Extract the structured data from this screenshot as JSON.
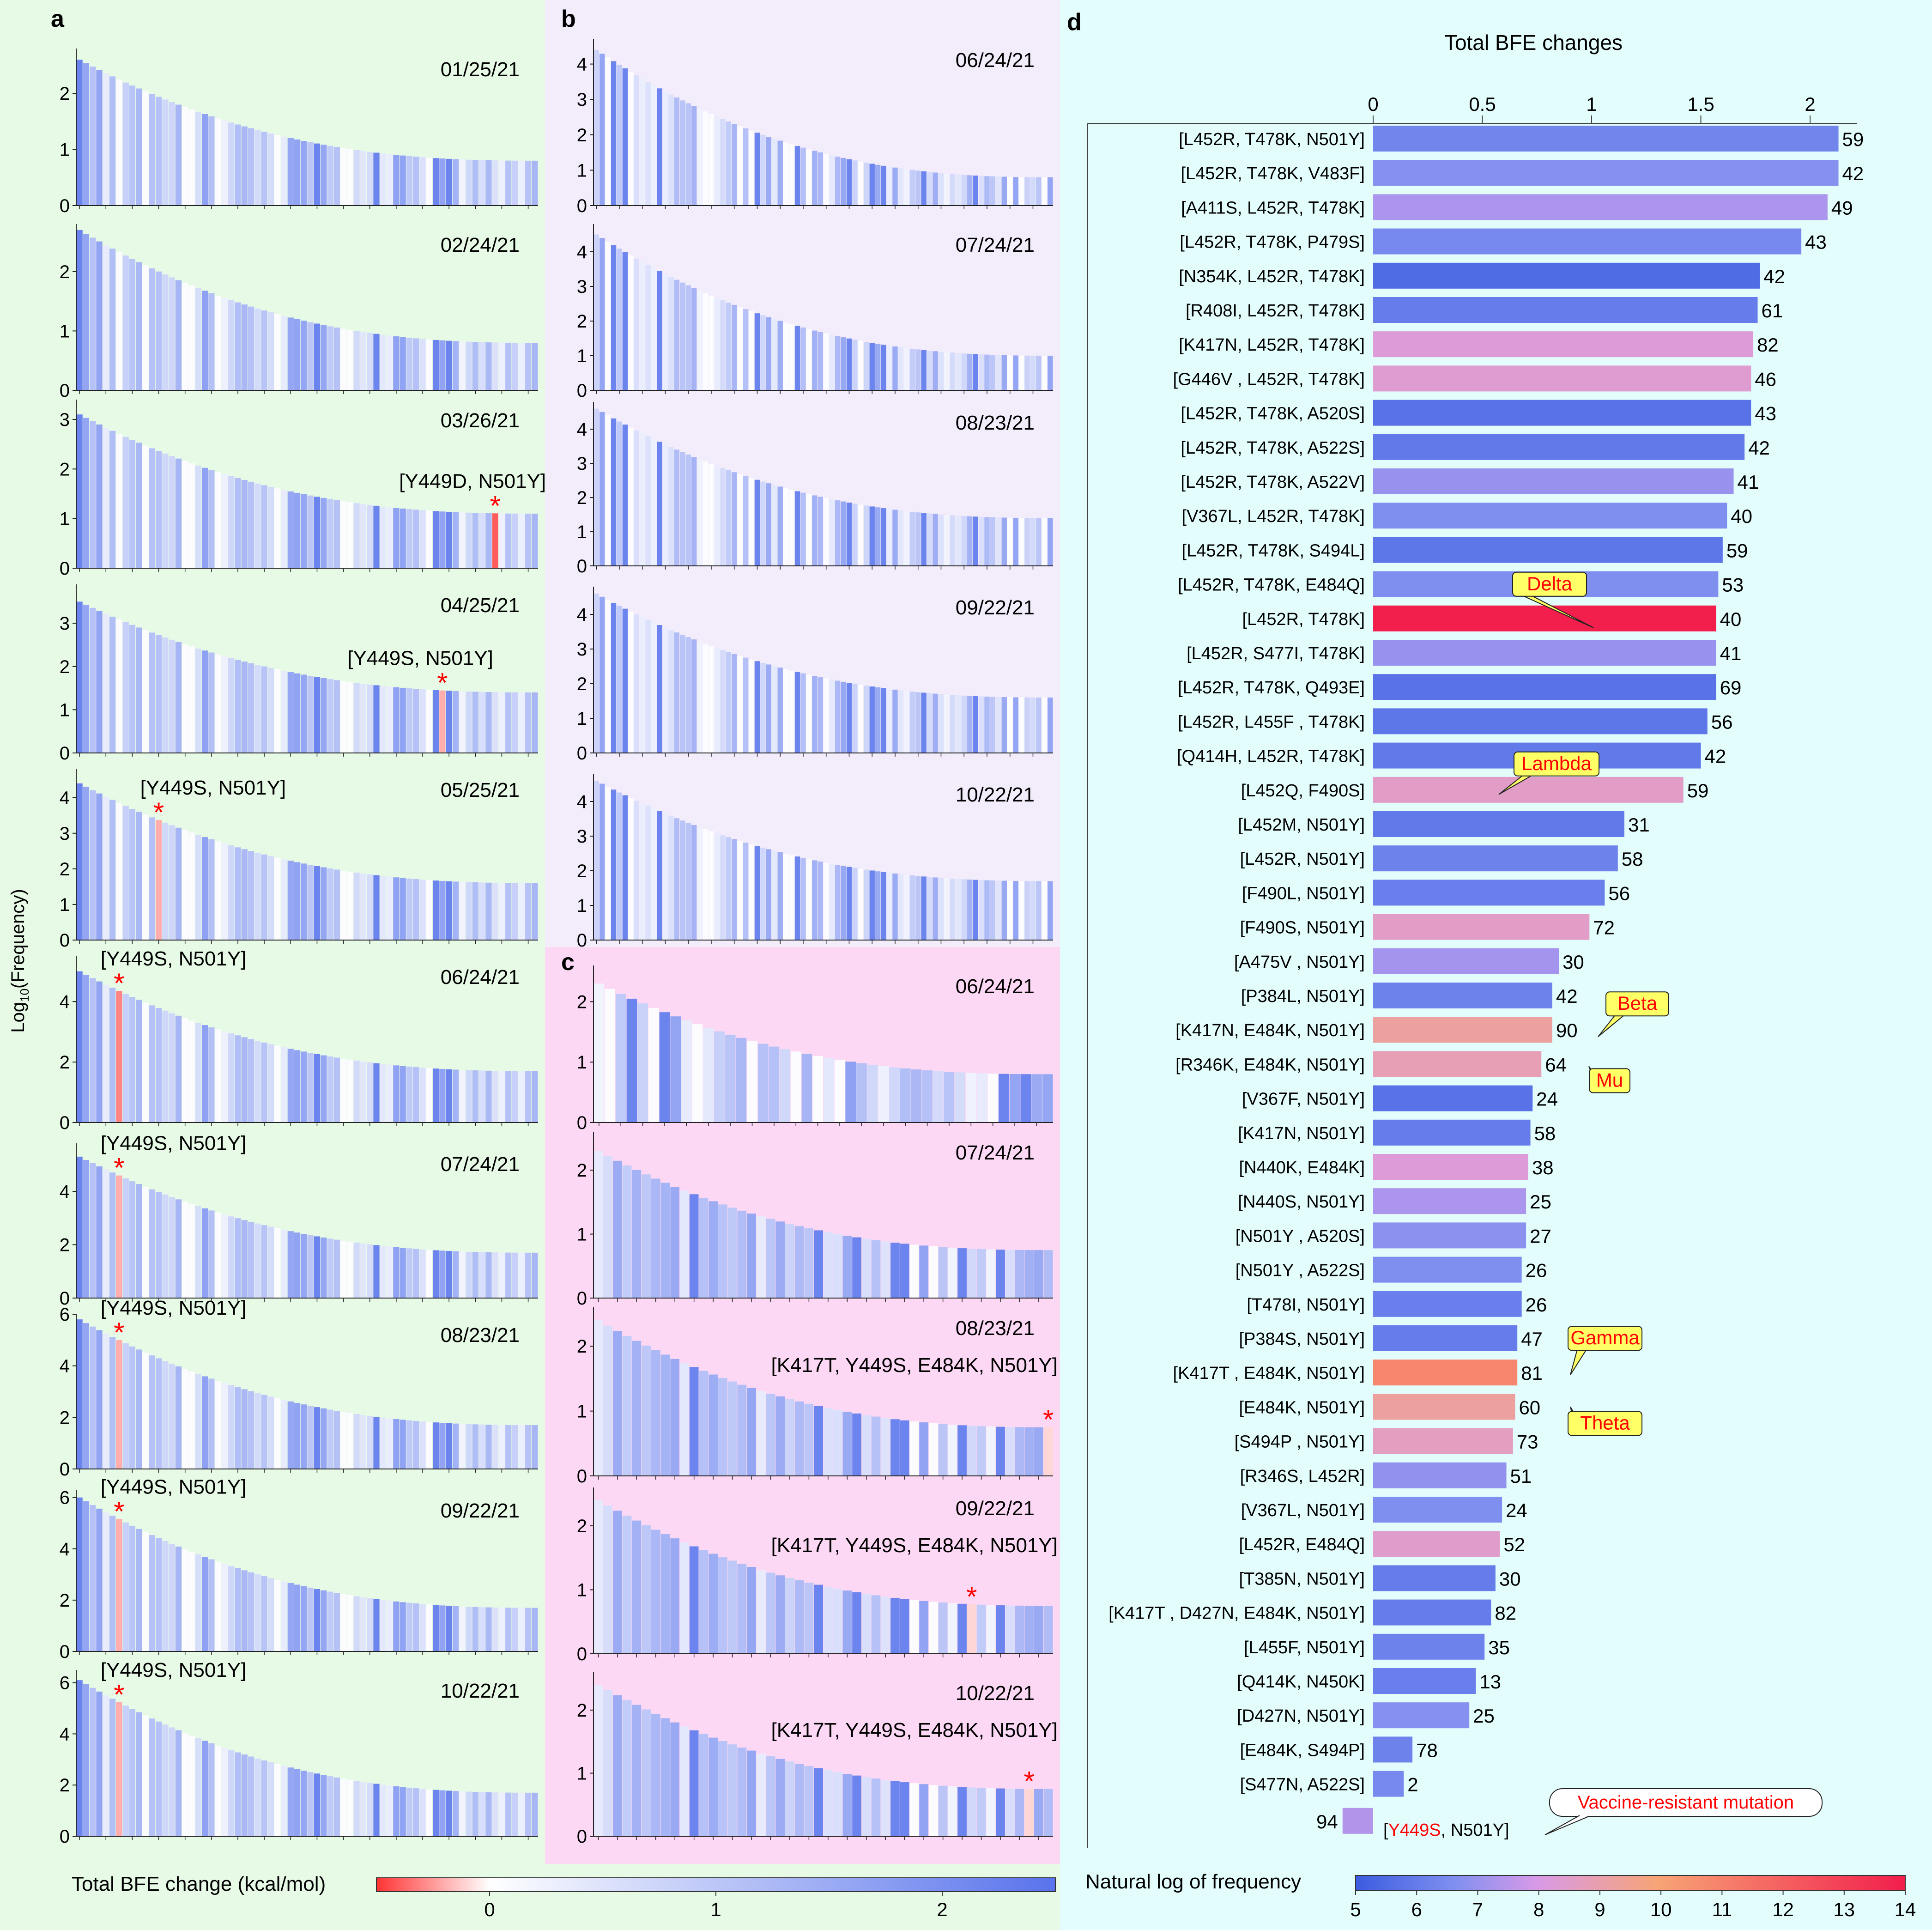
{
  "panels": {
    "a_label": "a",
    "b_label": "b",
    "c_label": "c",
    "d_label": "d",
    "y_axis_label_prefix": "Log",
    "y_axis_label_sub": "10",
    "y_axis_label_suffix": "(Frequency)"
  },
  "colors": {
    "panel_a_bg": "#e6fae6",
    "panel_b_bg": "#f2ecfb",
    "panel_c_bg": "#fcd8f4",
    "panel_d_bg": "#e3fdfd",
    "bfe_negative": "#ff3333",
    "bfe_zero": "#ffffff",
    "bfe_positive": "#5873ec",
    "freq_low": "#3b5ce0",
    "freq_mid": "#d89ae8",
    "freq_orange": "#f7a476",
    "freq_high": "#f21e4c",
    "annotation_fill": "#ffff66",
    "annotation_text": "#ff0000",
    "star": "#ff0000"
  },
  "bfe_colorbar": {
    "label": "Total BFE change (kcal/mol)",
    "ticks": [
      "0",
      "1",
      "2"
    ],
    "tick_values": [
      0,
      1,
      2
    ],
    "range": [
      -0.5,
      2.5
    ]
  },
  "freq_colorbar": {
    "label": "Natural log of frequency",
    "ticks": [
      "5",
      "6",
      "7",
      "8",
      "9",
      "10",
      "11",
      "12",
      "13",
      "14"
    ],
    "tick_values": [
      5,
      6,
      7,
      8,
      9,
      10,
      11,
      12,
      13,
      14
    ],
    "range": [
      5,
      14
    ]
  },
  "chart_data": [
    {
      "type": "bar",
      "panel": "a",
      "x_label": "",
      "y_label": "Log10(Frequency)",
      "subplots": [
        {
          "date": "01/25/21",
          "y_ticks": [
            "0",
            "1",
            "2"
          ],
          "ylim": [
            0,
            2.8
          ],
          "y_start": 2.6,
          "y_end": 0.8,
          "n_bars": 70,
          "highlight_label": "",
          "highlight_index": -1
        },
        {
          "date": "02/24/21",
          "y_ticks": [
            "0",
            "1",
            "2"
          ],
          "ylim": [
            0,
            2.8
          ],
          "y_start": 2.7,
          "y_end": 0.8,
          "n_bars": 70,
          "highlight_label": "",
          "highlight_index": -1
        },
        {
          "date": "03/26/21",
          "y_ticks": [
            "0",
            "1",
            "2",
            "3"
          ],
          "ylim": [
            0,
            3.4
          ],
          "y_start": 3.1,
          "y_end": 1.1,
          "n_bars": 70,
          "highlight_label": "[Y449D, N501Y]",
          "highlight_index": 63,
          "highlight_bfe": -0.4
        },
        {
          "date": "04/25/21",
          "y_ticks": [
            "0",
            "1",
            "2",
            "3"
          ],
          "ylim": [
            0,
            3.9
          ],
          "y_start": 3.5,
          "y_end": 1.4,
          "n_bars": 70,
          "highlight_label": "[Y449S, N501Y]",
          "highlight_index": 55,
          "highlight_bfe": -0.2
        },
        {
          "date": "05/25/21",
          "y_ticks": [
            "0",
            "1",
            "2",
            "3",
            "4"
          ],
          "ylim": [
            0,
            4.8
          ],
          "y_start": 4.4,
          "y_end": 1.6,
          "n_bars": 70,
          "highlight_label": "[Y449S, N501Y]",
          "highlight_index": 12,
          "highlight_bfe": -0.2
        },
        {
          "date": "06/24/21",
          "y_ticks": [
            "0",
            "2",
            "4"
          ],
          "ylim": [
            0,
            5.5
          ],
          "y_start": 5.0,
          "y_end": 1.7,
          "n_bars": 70,
          "highlight_label": "[Y449S, N501Y]",
          "highlight_index": 6,
          "highlight_bfe": -0.3
        },
        {
          "date": "07/24/21",
          "y_ticks": [
            "0",
            "2",
            "4"
          ],
          "ylim": [
            0,
            5.8
          ],
          "y_start": 5.3,
          "y_end": 1.7,
          "n_bars": 70,
          "highlight_label": "[Y449S, N501Y]",
          "highlight_index": 6,
          "highlight_bfe": -0.2
        },
        {
          "date": "08/23/21",
          "y_ticks": [
            "0",
            "2",
            "4",
            "6"
          ],
          "ylim": [
            0,
            6.0
          ],
          "y_start": 5.8,
          "y_end": 1.7,
          "n_bars": 70,
          "highlight_label": "[Y449S, N501Y]",
          "highlight_index": 6,
          "highlight_bfe": -0.2
        },
        {
          "date": "09/22/21",
          "y_ticks": [
            "0",
            "2",
            "4",
            "6"
          ],
          "ylim": [
            0,
            6.3
          ],
          "y_start": 6.0,
          "y_end": 1.7,
          "n_bars": 70,
          "highlight_label": "[Y449S, N501Y]",
          "highlight_index": 6,
          "highlight_bfe": -0.2
        },
        {
          "date": "10/22/21",
          "y_ticks": [
            "0",
            "2",
            "4",
            "6"
          ],
          "ylim": [
            0,
            6.5
          ],
          "y_start": 6.1,
          "y_end": 1.7,
          "n_bars": 70,
          "highlight_label": "[Y449S, N501Y]",
          "highlight_index": 6,
          "highlight_bfe": -0.2
        }
      ]
    },
    {
      "type": "bar",
      "panel": "b",
      "subplots": [
        {
          "date": "06/24/21",
          "y_ticks": [
            "0",
            "1",
            "2",
            "3",
            "4"
          ],
          "ylim": [
            0,
            4.7
          ],
          "y_start": 4.4,
          "y_end": 0.8,
          "n_bars": 80
        },
        {
          "date": "07/24/21",
          "y_ticks": [
            "0",
            "1",
            "2",
            "3",
            "4"
          ],
          "ylim": [
            0,
            4.8
          ],
          "y_start": 4.5,
          "y_end": 1.0,
          "n_bars": 80
        },
        {
          "date": "08/23/21",
          "y_ticks": [
            "0",
            "1",
            "2",
            "3",
            "4"
          ],
          "ylim": [
            0,
            4.8
          ],
          "y_start": 4.6,
          "y_end": 1.4,
          "n_bars": 80
        },
        {
          "date": "09/22/21",
          "y_ticks": [
            "0",
            "1",
            "2",
            "3",
            "4"
          ],
          "ylim": [
            0,
            4.8
          ],
          "y_start": 4.6,
          "y_end": 1.6,
          "n_bars": 80
        },
        {
          "date": "10/22/21",
          "y_ticks": [
            "0",
            "1",
            "2",
            "3",
            "4"
          ],
          "ylim": [
            0,
            4.8
          ],
          "y_start": 4.6,
          "y_end": 1.7,
          "n_bars": 80
        }
      ]
    },
    {
      "type": "bar",
      "panel": "c",
      "subplots": [
        {
          "date": "06/24/21",
          "y_ticks": [
            "0",
            "1",
            "2"
          ],
          "ylim": [
            0,
            2.6
          ],
          "y_start": 2.3,
          "y_end": 0.8,
          "n_bars": 42,
          "highlight_label": "",
          "highlight_index": -1
        },
        {
          "date": "07/24/21",
          "y_ticks": [
            "0",
            "1",
            "2"
          ],
          "ylim": [
            0,
            2.6
          ],
          "y_start": 2.3,
          "y_end": 0.75,
          "n_bars": 48,
          "highlight_label": "",
          "highlight_index": -1
        },
        {
          "date": "08/23/21",
          "y_ticks": [
            "0",
            "1",
            "2"
          ],
          "ylim": [
            0,
            2.6
          ],
          "y_start": 2.4,
          "y_end": 0.75,
          "n_bars": 48,
          "highlight_label": "[K417T, Y449S, E484K, N501Y]",
          "highlight_index": 47,
          "highlight_bfe": -0.1
        },
        {
          "date": "09/22/21",
          "y_ticks": [
            "0",
            "1",
            "2"
          ],
          "ylim": [
            0,
            2.6
          ],
          "y_start": 2.4,
          "y_end": 0.75,
          "n_bars": 48,
          "highlight_label": "[K417T, Y449S, E484K, N501Y]",
          "highlight_index": 39,
          "highlight_bfe": -0.1
        },
        {
          "date": "10/22/21",
          "y_ticks": [
            "0",
            "1",
            "2"
          ],
          "ylim": [
            0,
            2.6
          ],
          "y_start": 2.4,
          "y_end": 0.75,
          "n_bars": 48,
          "highlight_label": "[K417T, Y449S, E484K, N501Y]",
          "highlight_index": 45,
          "highlight_bfe": -0.1
        }
      ]
    },
    {
      "type": "bar",
      "panel": "d",
      "orientation": "horizontal",
      "title": "Total BFE changes",
      "x_ticks": [
        "0",
        "0.5",
        "1",
        "1.5",
        "2"
      ],
      "xlim": [
        0,
        2.2
      ],
      "categories": [
        "[L452R, T478K, N501Y]",
        "[L452R, T478K, V483F]",
        "[A411S, L452R, T478K]",
        "[L452R, T478K, P479S]",
        "[N354K, L452R, T478K]",
        "[R408I, L452R, T478K]",
        "[K417N, L452R, T478K]",
        "[G446V , L452R, T478K]",
        "[L452R, T478K, A520S]",
        "[L452R, T478K, A522S]",
        "[L452R, T478K, A522V]",
        "[V367L, L452R, T478K]",
        "[L452R, T478K, S494L]",
        "[L452R, T478K, E484Q]",
        "[L452R, T478K]",
        "[L452R, S477I, T478K]",
        "[L452R, T478K, Q493E]",
        "[L452R, L455F , T478K]",
        "[Q414H, L452R, T478K]",
        "[L452Q, F490S]",
        "[L452M, N501Y]",
        "[L452R, N501Y]",
        "[F490L, N501Y]",
        "[F490S, N501Y]",
        "[A475V , N501Y]",
        "[P384L, N501Y]",
        "[K417N, E484K, N501Y]",
        "[R346K, E484K, N501Y]",
        "[V367F, N501Y]",
        "[K417N, N501Y]",
        "[N440K, E484K]",
        "[N440S, N501Y]",
        "[N501Y , A520S]",
        "[N501Y , A522S]",
        "[T478I, N501Y]",
        "[P384S, N501Y]",
        "[K417T , E484K, N501Y]",
        "[E484K, N501Y]",
        "[S494P , N501Y]",
        "[R346S, L452R]",
        "[V367L, N501Y]",
        "[L452R, E484Q]",
        "[T385N, N501Y]",
        "[K417T , D427N, E484K, N501Y]",
        "[L455F, N501Y]",
        "[Q414K, N450K]",
        "[D427N, N501Y]",
        "[E484K, S494P]",
        "[S477N, A522S]"
      ],
      "values": [
        2.13,
        2.13,
        2.08,
        1.96,
        1.77,
        1.76,
        1.74,
        1.73,
        1.73,
        1.7,
        1.65,
        1.62,
        1.6,
        1.58,
        1.57,
        1.57,
        1.57,
        1.53,
        1.5,
        1.42,
        1.15,
        1.12,
        1.06,
        0.99,
        0.85,
        0.82,
        0.82,
        0.77,
        0.73,
        0.72,
        0.71,
        0.7,
        0.7,
        0.68,
        0.68,
        0.66,
        0.66,
        0.65,
        0.64,
        0.61,
        0.59,
        0.58,
        0.56,
        0.54,
        0.51,
        0.47,
        0.44,
        0.18,
        0.14
      ],
      "counts": [
        "59",
        "42",
        "49",
        "43",
        "42",
        "61",
        "82",
        "46",
        "43",
        "42",
        "41",
        "40",
        "59",
        "53",
        "40",
        "41",
        "69",
        "56",
        "42",
        "59",
        "31",
        "58",
        "56",
        "72",
        "30",
        "42",
        "90",
        "64",
        "24",
        "58",
        "38",
        "25",
        "27",
        "26",
        "26",
        "47",
        "81",
        "60",
        "73",
        "51",
        "24",
        "52",
        "30",
        "82",
        "35",
        "13",
        "25",
        "78",
        "2"
      ],
      "log_frequency": [
        6.3,
        6.7,
        7.3,
        6.4,
        5.5,
        6.0,
        8.3,
        8.4,
        5.7,
        5.9,
        7.0,
        6.6,
        5.8,
        6.6,
        14.0,
        7.0,
        5.7,
        5.8,
        5.9,
        8.6,
        5.9,
        6.2,
        6.1,
        8.6,
        7.2,
        6.2,
        9.3,
        8.9,
        5.7,
        6.0,
        8.3,
        7.3,
        6.8,
        6.6,
        6.1,
        6.0,
        10.9,
        9.3,
        8.7,
        6.9,
        6.6,
        8.5,
        6.0,
        6.0,
        6.2,
        6.1,
        6.7,
        6.2,
        6.4
      ],
      "annotations": [
        {
          "label": "Delta",
          "category_index": 14
        },
        {
          "label": "Lambda",
          "category_index": 19
        },
        {
          "label": "Beta",
          "category_index": 26
        },
        {
          "label": "Mu",
          "category_index": 27
        },
        {
          "label": "Gamma",
          "category_index": 36
        },
        {
          "label": "Theta",
          "category_index": 37
        }
      ],
      "negative_entry": {
        "count": "94",
        "value": -0.14,
        "log_frequency": 7.4,
        "label_red": "Y449S",
        "label_rest": ", N501Y]",
        "label_open": "[",
        "callout": "Vaccine-resistant mutation"
      }
    }
  ]
}
